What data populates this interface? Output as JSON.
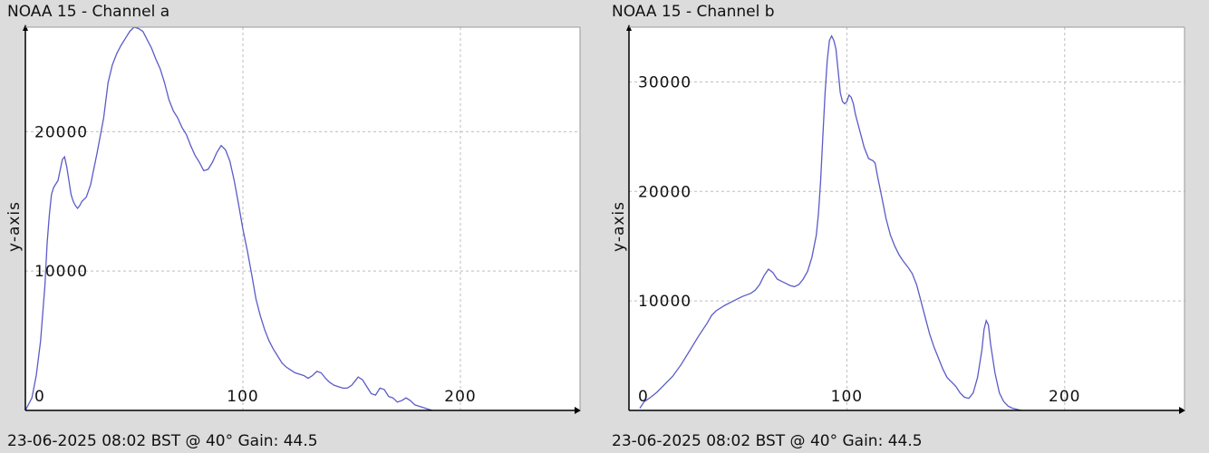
{
  "chart_data": [
    {
      "type": "line",
      "title": "NOAA 15 - Channel a",
      "footer": "23-06-2025 08:02 BST @ 40° Gain: 44.5",
      "ylabel": "y-axis",
      "xlabel": "",
      "xlim": [
        0,
        255
      ],
      "ylim": [
        0,
        27500
      ],
      "xticks": [
        0,
        100,
        200
      ],
      "yticks": [
        10000,
        20000
      ],
      "grid": true,
      "line_color": "#5b5bc8",
      "series": [
        {
          "points": [
            [
              0,
              0
            ],
            [
              3,
              900
            ],
            [
              5,
              2500
            ],
            [
              7,
              5000
            ],
            [
              9,
              9000
            ],
            [
              10,
              12000
            ],
            [
              11,
              14000
            ],
            [
              12,
              15500
            ],
            [
              13,
              16000
            ],
            [
              15,
              16500
            ],
            [
              17,
              18000
            ],
            [
              18,
              18200
            ],
            [
              19,
              17500
            ],
            [
              20,
              16500
            ],
            [
              21,
              15500
            ],
            [
              22,
              15000
            ],
            [
              23,
              14700
            ],
            [
              24,
              14500
            ],
            [
              25,
              14700
            ],
            [
              26,
              15000
            ],
            [
              28,
              15300
            ],
            [
              30,
              16200
            ],
            [
              33,
              18500
            ],
            [
              36,
              21000
            ],
            [
              38,
              23500
            ],
            [
              40,
              24800
            ],
            [
              42,
              25600
            ],
            [
              44,
              26200
            ],
            [
              46,
              26700
            ],
            [
              48,
              27200
            ],
            [
              50,
              27500
            ],
            [
              52,
              27400
            ],
            [
              54,
              27200
            ],
            [
              56,
              26600
            ],
            [
              58,
              26000
            ],
            [
              60,
              25200
            ],
            [
              62,
              24500
            ],
            [
              64,
              23500
            ],
            [
              66,
              22300
            ],
            [
              68,
              21500
            ],
            [
              70,
              21000
            ],
            [
              72,
              20300
            ],
            [
              74,
              19800
            ],
            [
              76,
              19000
            ],
            [
              78,
              18300
            ],
            [
              80,
              17800
            ],
            [
              82,
              17200
            ],
            [
              84,
              17300
            ],
            [
              86,
              17800
            ],
            [
              88,
              18500
            ],
            [
              90,
              19000
            ],
            [
              92,
              18700
            ],
            [
              94,
              17900
            ],
            [
              96,
              16500
            ],
            [
              98,
              14800
            ],
            [
              100,
              13000
            ],
            [
              102,
              11500
            ],
            [
              104,
              9800
            ],
            [
              106,
              8000
            ],
            [
              108,
              6800
            ],
            [
              110,
              5800
            ],
            [
              112,
              5000
            ],
            [
              114,
              4400
            ],
            [
              116,
              3900
            ],
            [
              118,
              3400
            ],
            [
              120,
              3100
            ],
            [
              122,
              2900
            ],
            [
              124,
              2700
            ],
            [
              126,
              2600
            ],
            [
              128,
              2500
            ],
            [
              130,
              2300
            ],
            [
              132,
              2500
            ],
            [
              134,
              2800
            ],
            [
              136,
              2700
            ],
            [
              138,
              2300
            ],
            [
              140,
              2000
            ],
            [
              142,
              1800
            ],
            [
              144,
              1700
            ],
            [
              146,
              1600
            ],
            [
              148,
              1600
            ],
            [
              150,
              1800
            ],
            [
              152,
              2200
            ],
            [
              153,
              2400
            ],
            [
              155,
              2200
            ],
            [
              157,
              1700
            ],
            [
              159,
              1200
            ],
            [
              161,
              1100
            ],
            [
              163,
              1600
            ],
            [
              165,
              1500
            ],
            [
              167,
              1000
            ],
            [
              169,
              900
            ],
            [
              171,
              600
            ],
            [
              173,
              700
            ],
            [
              175,
              900
            ],
            [
              177,
              700
            ],
            [
              179,
              400
            ],
            [
              181,
              300
            ],
            [
              183,
              200
            ],
            [
              185,
              100
            ],
            [
              187,
              0
            ]
          ]
        }
      ]
    },
    {
      "type": "line",
      "title": "NOAA 15 - Channel b",
      "footer": "23-06-2025 08:02 BST @ 40° Gain: 44.5",
      "ylabel": "y-axis",
      "xlabel": "",
      "xlim": [
        0,
        255
      ],
      "ylim": [
        0,
        35000
      ],
      "xticks": [
        0,
        100,
        200
      ],
      "yticks": [
        10000,
        20000,
        30000
      ],
      "grid": true,
      "line_color": "#5b5bc8",
      "series": [
        {
          "points": [
            [
              5,
              200
            ],
            [
              7,
              800
            ],
            [
              10,
              1200
            ],
            [
              13,
              1700
            ],
            [
              16,
              2300
            ],
            [
              20,
              3100
            ],
            [
              24,
              4200
            ],
            [
              28,
              5500
            ],
            [
              32,
              6800
            ],
            [
              36,
              8000
            ],
            [
              38,
              8700
            ],
            [
              40,
              9100
            ],
            [
              44,
              9600
            ],
            [
              48,
              10000
            ],
            [
              52,
              10400
            ],
            [
              56,
              10700
            ],
            [
              58,
              11000
            ],
            [
              60,
              11500
            ],
            [
              62,
              12300
            ],
            [
              64,
              12900
            ],
            [
              66,
              12600
            ],
            [
              68,
              12000
            ],
            [
              70,
              11800
            ],
            [
              72,
              11600
            ],
            [
              74,
              11400
            ],
            [
              76,
              11300
            ],
            [
              78,
              11500
            ],
            [
              80,
              12000
            ],
            [
              82,
              12700
            ],
            [
              84,
              14000
            ],
            [
              86,
              16000
            ],
            [
              87,
              18000
            ],
            [
              88,
              21000
            ],
            [
              89,
              25000
            ],
            [
              90,
              29000
            ],
            [
              91,
              32000
            ],
            [
              92,
              33800
            ],
            [
              93,
              34200
            ],
            [
              94,
              33800
            ],
            [
              95,
              33000
            ],
            [
              96,
              31000
            ],
            [
              97,
              29000
            ],
            [
              98,
              28200
            ],
            [
              99,
              28000
            ],
            [
              100,
              28200
            ],
            [
              101,
              28800
            ],
            [
              102,
              28600
            ],
            [
              103,
              28000
            ],
            [
              104,
              27000
            ],
            [
              106,
              25500
            ],
            [
              108,
              24000
            ],
            [
              110,
              23000
            ],
            [
              112,
              22800
            ],
            [
              113,
              22600
            ],
            [
              114,
              21500
            ],
            [
              116,
              19500
            ],
            [
              118,
              17500
            ],
            [
              120,
              16000
            ],
            [
              122,
              15000
            ],
            [
              124,
              14200
            ],
            [
              126,
              13600
            ],
            [
              128,
              13100
            ],
            [
              130,
              12500
            ],
            [
              132,
              11500
            ],
            [
              134,
              10000
            ],
            [
              136,
              8500
            ],
            [
              138,
              7000
            ],
            [
              140,
              5800
            ],
            [
              142,
              4800
            ],
            [
              144,
              3800
            ],
            [
              146,
              3000
            ],
            [
              148,
              2600
            ],
            [
              150,
              2200
            ],
            [
              152,
              1600
            ],
            [
              154,
              1200
            ],
            [
              156,
              1100
            ],
            [
              158,
              1600
            ],
            [
              160,
              3000
            ],
            [
              162,
              5500
            ],
            [
              163,
              7400
            ],
            [
              164,
              8200
            ],
            [
              165,
              7800
            ],
            [
              166,
              6000
            ],
            [
              168,
              3400
            ],
            [
              170,
              1600
            ],
            [
              172,
              800
            ],
            [
              174,
              400
            ],
            [
              176,
              200
            ],
            [
              178,
              100
            ],
            [
              180,
              0
            ]
          ]
        }
      ]
    }
  ]
}
